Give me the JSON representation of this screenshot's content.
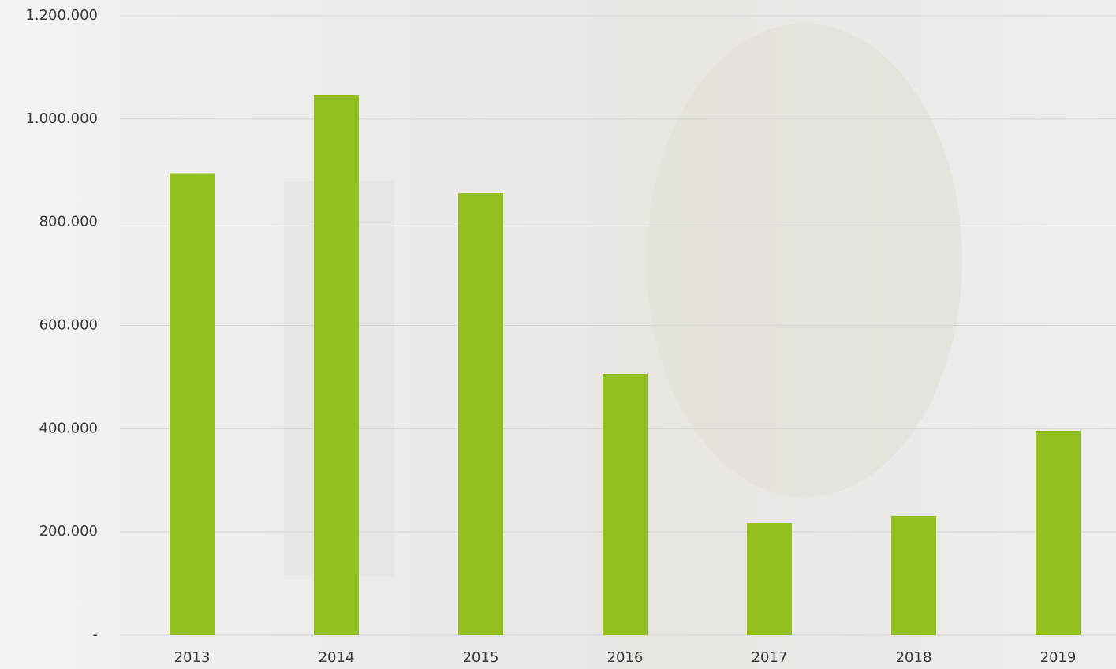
{
  "chart_data": {
    "type": "bar",
    "categories": [
      "2013",
      "2014",
      "2015",
      "2016",
      "2017",
      "2018",
      "2019"
    ],
    "values": [
      895000,
      1046000,
      856000,
      506000,
      217000,
      231000,
      396000
    ],
    "color": "#93c01f",
    "ylim": [
      0,
      1200000
    ],
    "yticks": [
      {
        "value": 0,
        "label": "-"
      },
      {
        "value": 200000,
        "label": "200.000"
      },
      {
        "value": 400000,
        "label": "400.000"
      },
      {
        "value": 600000,
        "label": "600.000"
      },
      {
        "value": 800000,
        "label": "800.000"
      },
      {
        "value": 1000000,
        "label": "1.000.000"
      },
      {
        "value": 1200000,
        "label": "1.200.000"
      }
    ],
    "grid": true
  }
}
